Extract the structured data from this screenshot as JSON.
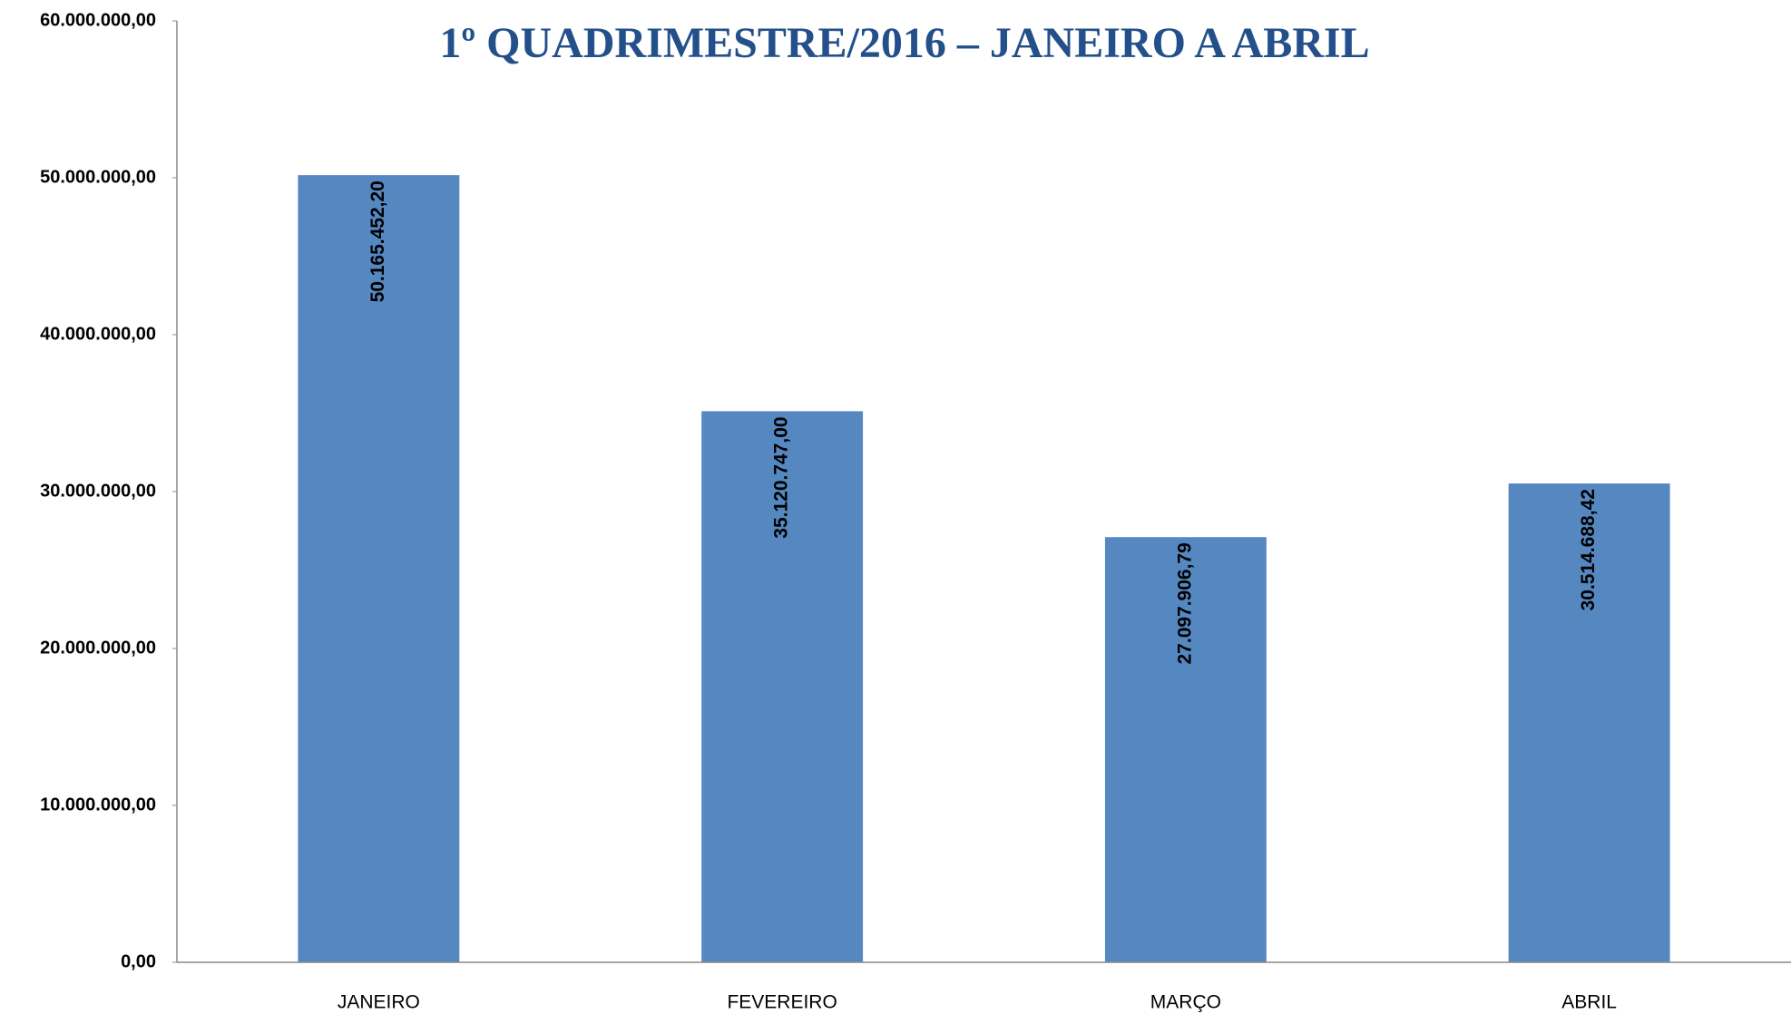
{
  "chart_data": {
    "type": "bar",
    "title": "1º QUADRIMESTRE/2016 – JANEIRO A ABRIL",
    "categories": [
      "JANEIRO",
      "FEVEREIRO",
      "MARÇO",
      "ABRIL"
    ],
    "values": [
      50165452.2,
      35120747.0,
      27097906.79,
      30514688.42
    ],
    "value_labels": [
      "50.165.452,20",
      "35.120.747,00",
      "27.097.906,79",
      "30.514.688,42"
    ],
    "color": "#5587c1",
    "ylim": [
      0,
      60000000
    ],
    "yticks": [
      {
        "value": 0,
        "label": "0,00"
      },
      {
        "value": 10000000,
        "label": "10.000.000,00"
      },
      {
        "value": 20000000,
        "label": "20.000.000,00"
      },
      {
        "value": 30000000,
        "label": "30.000.000,00"
      },
      {
        "value": 40000000,
        "label": "40.000.000,00"
      },
      {
        "value": 50000000,
        "label": "50.000.000,00"
      },
      {
        "value": 60000000,
        "label": "60.000.000,00"
      }
    ],
    "grid": false
  }
}
